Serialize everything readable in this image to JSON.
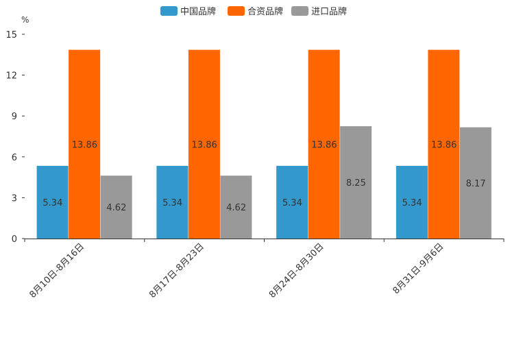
{
  "chart_data": {
    "type": "bar",
    "title": "",
    "xlabel": "",
    "ylabel": "%",
    "ylim": [
      0,
      15
    ],
    "yticks": [
      0,
      3,
      6,
      9,
      12,
      15
    ],
    "categories": [
      "8月10日-8月16日",
      "8月17日-8月23日",
      "8月24日-8月30日",
      "8月31日-9月6日"
    ],
    "series": [
      {
        "name": "中国品牌",
        "color": "#3398cc",
        "values": [
          5.34,
          5.34,
          5.34,
          5.34
        ],
        "labels": [
          "5.34",
          "5.34",
          "5.34",
          "5.34"
        ]
      },
      {
        "name": "合资品牌",
        "color": "#ff6600",
        "values": [
          13.86,
          13.86,
          13.86,
          13.86
        ],
        "labels": [
          "13.86",
          "13.86",
          "13.86",
          "13.86"
        ]
      },
      {
        "name": "进口品牌",
        "color": "#999999",
        "values": [
          4.62,
          4.62,
          8.25,
          8.17
        ],
        "labels": [
          "4.62",
          "4.62",
          "8.25",
          "8.17"
        ]
      }
    ],
    "legend_position": "top-center",
    "grid": false
  }
}
